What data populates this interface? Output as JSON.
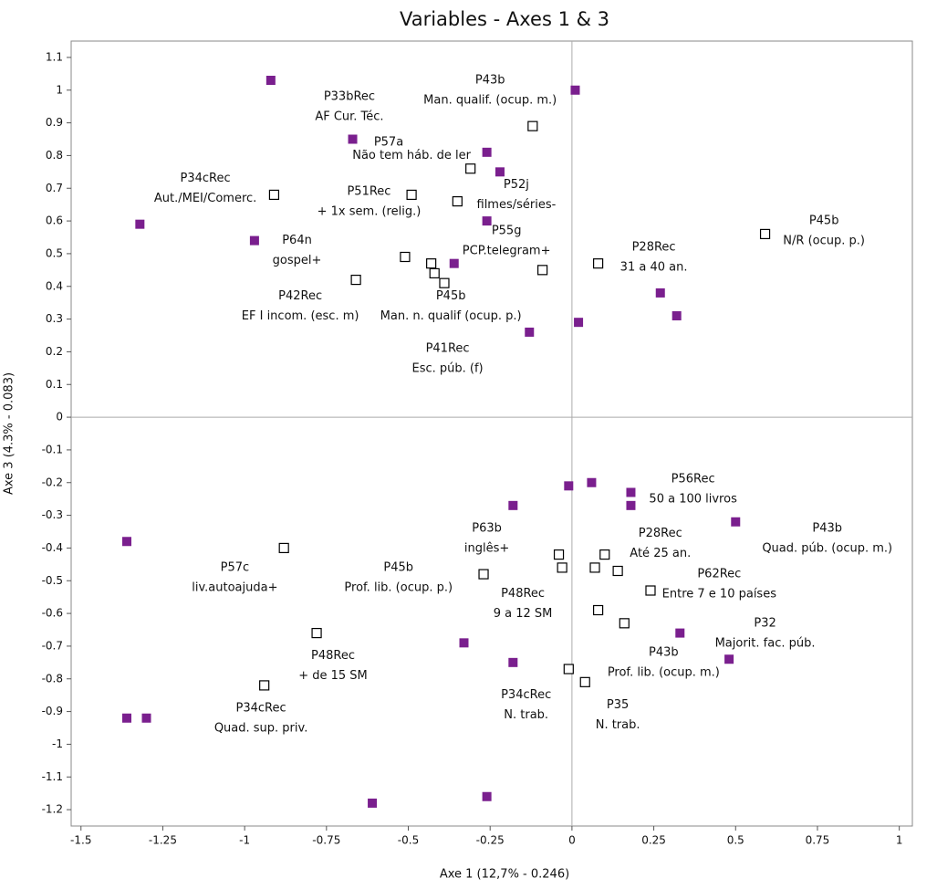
{
  "chart_data": {
    "type": "scatter",
    "title": "Variables - Axes 1 & 3",
    "xlabel": "Axe 1 (12,7% - 0.246)",
    "ylabel": "Axe 3 (4.3% - 0.083)",
    "xlim": [
      -1.53,
      1.04
    ],
    "ylim": [
      -1.25,
      1.15
    ],
    "xticks": [
      -1.5,
      -1.25,
      -1,
      -0.75,
      -0.5,
      -0.25,
      0,
      0.25,
      0.5,
      0.75,
      1
    ],
    "yticks": [
      1.1,
      1,
      0.9,
      0.8,
      0.7,
      0.6,
      0.5,
      0.4,
      0.3,
      0.2,
      0.1,
      0,
      -0.1,
      -0.2,
      -0.3,
      -0.4,
      -0.5,
      -0.6,
      -0.7,
      -0.8,
      -0.9,
      -1,
      -1.1,
      -1.2
    ],
    "zero_lines": true,
    "series": [
      {
        "color": "#7a1f8e",
        "filled": true,
        "x": [
          -0.92,
          0.01,
          -0.67,
          -0.26,
          -0.22,
          -1.32,
          -0.97,
          -0.26,
          -0.36,
          0.27,
          0.32,
          0.02,
          -0.13,
          -0.01,
          0.06,
          0.18,
          0.18,
          -0.18,
          0.5,
          -1.36,
          0.33,
          -0.33,
          -0.18,
          0.48,
          -1.36,
          -1.3,
          -0.61,
          -0.26
        ],
        "values": [
          1.03,
          1.0,
          0.85,
          0.81,
          0.75,
          0.59,
          0.54,
          0.6,
          0.47,
          0.38,
          0.31,
          0.29,
          0.26,
          -0.21,
          -0.2,
          -0.23,
          -0.27,
          -0.27,
          -0.32,
          -0.38,
          -0.66,
          -0.69,
          -0.75,
          -0.74,
          -0.92,
          -0.92,
          -1.18,
          -1.16
        ]
      },
      {
        "color": "#000000",
        "filled": false,
        "x": [
          -0.12,
          -0.31,
          -0.91,
          -0.49,
          -0.35,
          0.59,
          -0.51,
          -0.43,
          0.08,
          -0.09,
          -0.42,
          -0.39,
          -0.66,
          -0.88,
          -0.04,
          0.1,
          -0.03,
          0.07,
          0.14,
          -0.27,
          0.24,
          0.08,
          0.16,
          -0.78,
          -0.94,
          -0.01,
          0.04
        ],
        "values": [
          0.89,
          0.76,
          0.68,
          0.68,
          0.66,
          0.56,
          0.49,
          0.47,
          0.47,
          0.45,
          0.44,
          0.41,
          0.42,
          -0.4,
          -0.42,
          -0.42,
          -0.46,
          -0.46,
          -0.47,
          -0.48,
          -0.53,
          -0.59,
          -0.63,
          -0.66,
          -0.82,
          -0.77,
          -0.81
        ]
      }
    ],
    "annotations": [
      {
        "lines": [
          "P33bRec",
          "AF Cur. Téc."
        ],
        "x": -0.68,
        "y": 0.98
      },
      {
        "lines": [
          "P43b",
          "Man. qualif. (ocup. m.)"
        ],
        "x": -0.25,
        "y": 1.03
      },
      {
        "lines": [
          "P57a"
        ],
        "x": -0.56,
        "y": 0.84
      },
      {
        "lines": [
          "Não tem háb. de ler"
        ],
        "x": -0.49,
        "y": 0.8
      },
      {
        "lines": [
          "P52j",
          "filmes/séries-"
        ],
        "x": -0.17,
        "y": 0.71
      },
      {
        "lines": [
          "P34cRec",
          "Aut./MEI/Comerc."
        ],
        "x": -1.12,
        "y": 0.73
      },
      {
        "lines": [
          "P51Rec",
          "+ 1x sem. (relig.)"
        ],
        "x": -0.62,
        "y": 0.69
      },
      {
        "lines": [
          "P55g",
          "PCP.telegram+"
        ],
        "x": -0.2,
        "y": 0.57
      },
      {
        "lines": [
          "P45b",
          "N/R (ocup. p.)"
        ],
        "x": 0.77,
        "y": 0.6
      },
      {
        "lines": [
          "P64n",
          "gospel+"
        ],
        "x": -0.84,
        "y": 0.54
      },
      {
        "lines": [
          "P28Rec",
          "31 a 40 an."
        ],
        "x": 0.25,
        "y": 0.52
      },
      {
        "lines": [
          "P42Rec",
          "EF I incom. (esc. m)"
        ],
        "x": -0.83,
        "y": 0.37
      },
      {
        "lines": [
          "P45b",
          "Man. n. qualif (ocup. p.)"
        ],
        "x": -0.37,
        "y": 0.37
      },
      {
        "lines": [
          "P41Rec",
          "Esc. púb. (f)"
        ],
        "x": -0.38,
        "y": 0.21
      },
      {
        "lines": [
          "P56Rec",
          "50 a 100 livros"
        ],
        "x": 0.37,
        "y": -0.19
      },
      {
        "lines": [
          "P63b",
          "inglês+"
        ],
        "x": -0.26,
        "y": -0.34
      },
      {
        "lines": [
          "P28Rec",
          "Até 25 an."
        ],
        "x": 0.27,
        "y": -0.355
      },
      {
        "lines": [
          "P43b",
          "Quad. púb. (ocup. m.)"
        ],
        "x": 0.78,
        "y": -0.34
      },
      {
        "lines": [
          "P57c",
          "liv.autoajuda+"
        ],
        "x": -1.03,
        "y": -0.46
      },
      {
        "lines": [
          "P45b",
          "Prof. lib. (ocup. p.)"
        ],
        "x": -0.53,
        "y": -0.46
      },
      {
        "lines": [
          "P62Rec",
          "Entre 7 e 10 países"
        ],
        "x": 0.45,
        "y": -0.48
      },
      {
        "lines": [
          "P48Rec",
          "9 a 12 SM"
        ],
        "x": -0.15,
        "y": -0.54
      },
      {
        "lines": [
          "P32",
          "Majorit. fac. púb."
        ],
        "x": 0.59,
        "y": -0.63
      },
      {
        "lines": [
          "P48Rec",
          "+ de 15 SM"
        ],
        "x": -0.73,
        "y": -0.73
      },
      {
        "lines": [
          "P43b",
          "Prof. lib. (ocup. m.)"
        ],
        "x": 0.28,
        "y": -0.72
      },
      {
        "lines": [
          "P34cRec",
          "N. trab."
        ],
        "x": -0.14,
        "y": -0.85
      },
      {
        "lines": [
          "P35",
          "N. trab."
        ],
        "x": 0.14,
        "y": -0.88
      },
      {
        "lines": [
          "P34cRec",
          "Quad. sup. priv."
        ],
        "x": -0.95,
        "y": -0.89
      }
    ]
  }
}
